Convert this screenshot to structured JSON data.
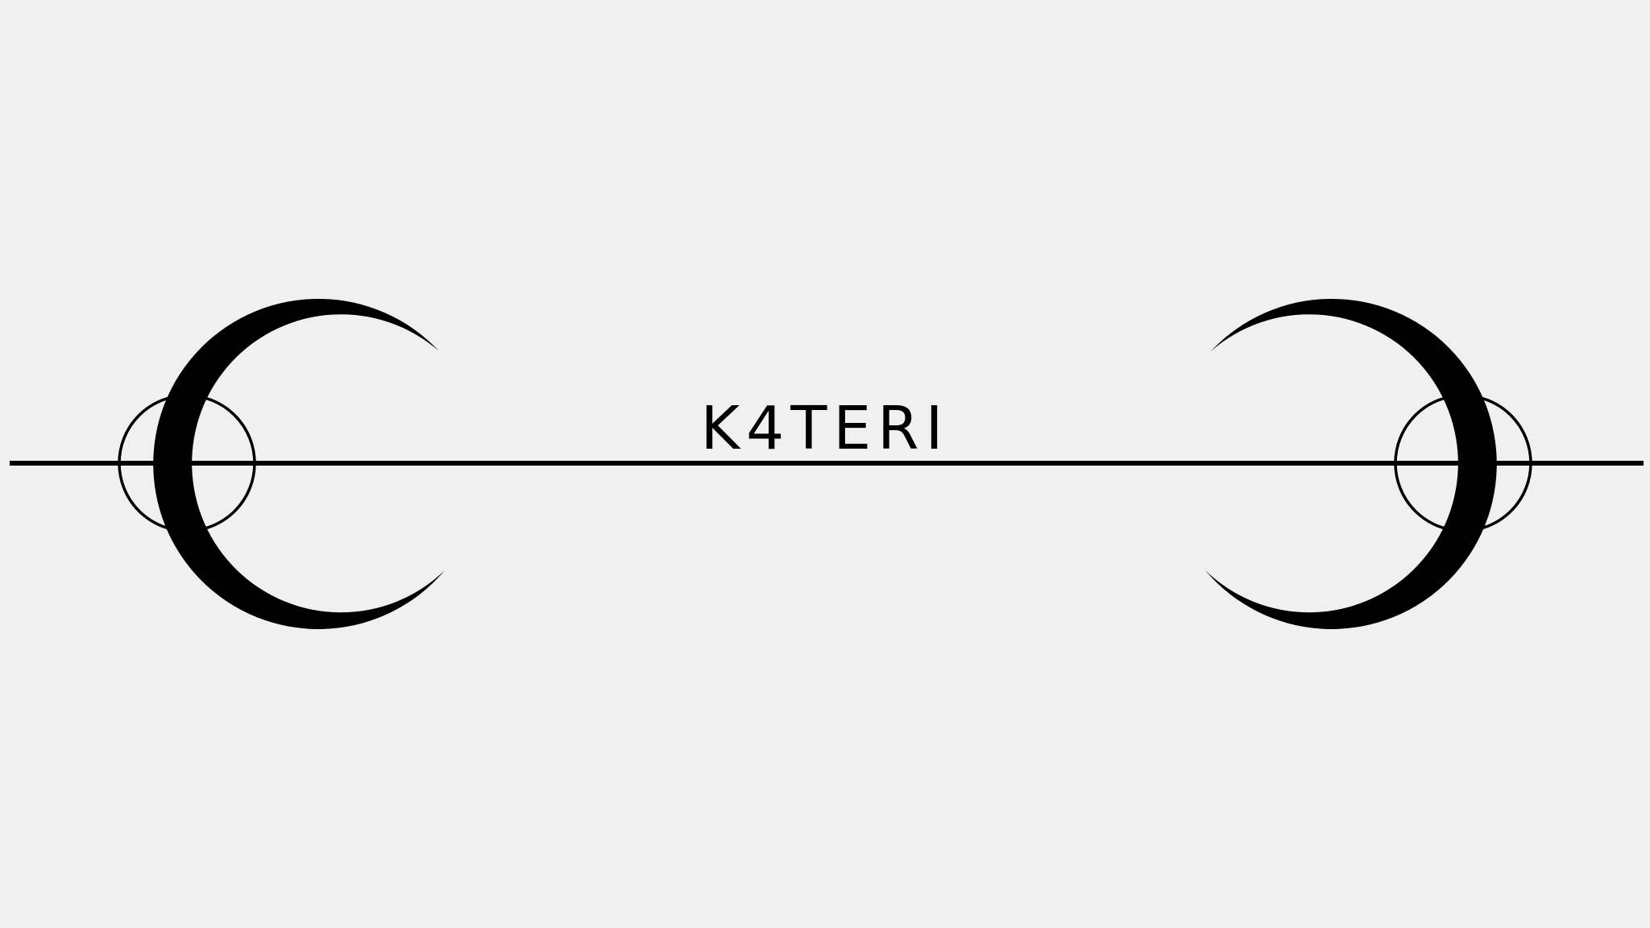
{
  "page": {
    "background": "#f0f0f0",
    "ink_color": "#000000"
  },
  "wordmark": {
    "text": "K4TERI"
  },
  "ornaments": {
    "left": {
      "icon": "crescent-moon-with-circle-icon",
      "opens": "right"
    },
    "right": {
      "icon": "crescent-moon-with-circle-icon",
      "opens": "left"
    },
    "center_line": "horizontal-rule"
  }
}
